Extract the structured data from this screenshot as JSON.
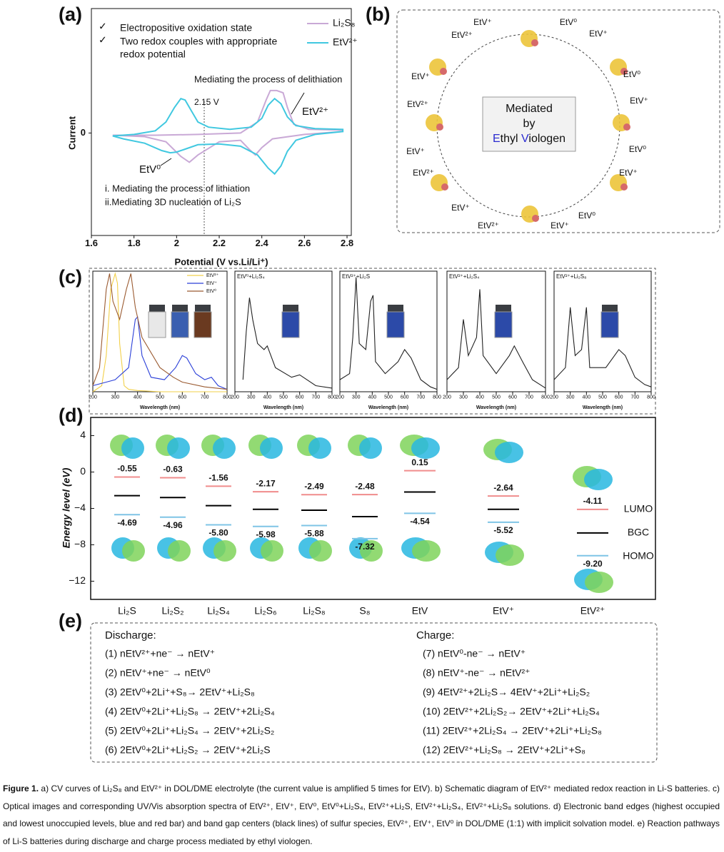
{
  "panel_labels": [
    "(a)",
    "(b)",
    "(c)",
    "(d)",
    "(e)"
  ],
  "chart_data": [
    {
      "type": "line",
      "x_label": "Potential (V vs.Li/Li⁺)",
      "y_label": "Current",
      "xlim": [
        1.6,
        2.82
      ],
      "xticks": [
        1.6,
        1.8,
        2.0,
        2.2,
        2.4,
        2.6,
        2.8
      ],
      "ylim": [
        -1.4,
        1.7
      ],
      "yticks": [
        0
      ],
      "annotations": [
        "Electropositive oxidation state",
        "Two redox couples with appropriate",
        "redox potential",
        "Mediating the process of delithiation",
        "2.15 V",
        "EtV²⁺",
        "EtV⁰",
        "i. Mediating the process of lithiation",
        "ii.Mediating 3D nucleation of Li₂S"
      ],
      "series": [
        {
          "name": "Li₂S₈",
          "color": "#c9a9d6",
          "x": [
            1.7,
            1.9,
            2.1,
            2.3,
            2.38,
            2.42,
            2.44,
            2.47,
            2.5,
            2.52,
            2.55,
            2.62,
            2.78,
            2.78,
            2.6,
            2.45,
            2.4,
            2.37,
            2.34,
            2.3,
            2.2,
            2.1,
            2.06,
            2.02,
            1.95,
            1.85,
            1.7
          ],
          "values": [
            -0.03,
            -0.03,
            -0.02,
            0.0,
            0.15,
            0.45,
            0.58,
            0.58,
            0.55,
            0.35,
            0.12,
            0.05,
            0.04,
            0.02,
            -0.02,
            -0.08,
            -0.2,
            -0.3,
            -0.22,
            -0.1,
            -0.12,
            -0.3,
            -0.4,
            -0.32,
            -0.12,
            -0.05,
            -0.03
          ]
        },
        {
          "name": "EtV²⁺",
          "color": "#40c8e0",
          "x": [
            1.7,
            1.8,
            1.9,
            1.95,
            1.99,
            2.02,
            2.04,
            2.07,
            2.1,
            2.15,
            2.25,
            2.35,
            2.4,
            2.43,
            2.46,
            2.49,
            2.52,
            2.56,
            2.65,
            2.78,
            2.78,
            2.65,
            2.56,
            2.52,
            2.49,
            2.46,
            2.43,
            2.38,
            2.3,
            2.2,
            2.1,
            2.04,
            2.0,
            1.97,
            1.93,
            1.85,
            1.75,
            1.7
          ],
          "values": [
            -0.04,
            -0.02,
            0.03,
            0.15,
            0.35,
            0.47,
            0.45,
            0.3,
            0.15,
            0.08,
            0.05,
            0.08,
            0.2,
            0.38,
            0.47,
            0.4,
            0.22,
            0.1,
            0.06,
            0.05,
            0.02,
            -0.02,
            -0.1,
            -0.25,
            -0.45,
            -0.56,
            -0.48,
            -0.3,
            -0.18,
            -0.15,
            -0.16,
            -0.22,
            -0.26,
            -0.27,
            -0.24,
            -0.14,
            -0.08,
            -0.04
          ]
        }
      ]
    },
    {
      "type": "line",
      "x_label": "Wavelength (nm)",
      "xlim": [
        200,
        800
      ],
      "xticks": [
        200,
        300,
        400,
        500,
        600,
        700,
        800
      ],
      "ylim": [
        0,
        1
      ],
      "yticks": [],
      "series": [
        {
          "name": "EtV²⁺",
          "color": "#f2d04a",
          "x": [
            200,
            240,
            260,
            280,
            300,
            310,
            320,
            340,
            360,
            400,
            500,
            600,
            800
          ],
          "values": [
            0,
            0.05,
            0.3,
            0.85,
            0.98,
            0.9,
            0.4,
            0.05,
            0.02,
            0.01,
            0,
            0,
            0
          ]
        },
        {
          "name": "EtV⁺",
          "color": "#2a3fd8",
          "x": [
            200,
            260,
            300,
            360,
            390,
            400,
            420,
            460,
            520,
            570,
            600,
            620,
            660,
            700,
            730,
            760,
            800
          ],
          "values": [
            0.05,
            0.08,
            0.1,
            0.2,
            0.6,
            0.62,
            0.3,
            0.12,
            0.1,
            0.2,
            0.3,
            0.28,
            0.15,
            0.1,
            0.12,
            0.05,
            0.02
          ]
        },
        {
          "name": "EtV⁰",
          "color": "#9a5a30",
          "x": [
            200,
            230,
            260,
            275,
            290,
            320,
            350,
            370,
            390,
            420,
            500,
            560,
            600,
            700,
            800
          ],
          "values": [
            0.05,
            0.2,
            0.85,
            0.98,
            0.75,
            0.6,
            0.85,
            0.98,
            0.7,
            0.45,
            0.2,
            0.12,
            0.08,
            0.04,
            0.02
          ]
        }
      ]
    },
    {
      "type": "line",
      "title": "EtV⁰+Li₂S₄",
      "x_label": "Wavelength (nm)",
      "xlim": [
        200,
        800
      ],
      "xticks": [
        200,
        300,
        400,
        500,
        600,
        700,
        800
      ],
      "ylim": [
        0,
        1
      ],
      "yticks": [],
      "series": [
        {
          "color": "#222222",
          "x": [
            250,
            270,
            290,
            310,
            340,
            380,
            400,
            450,
            550,
            600,
            700,
            800
          ],
          "values": [
            0.1,
            0.5,
            0.78,
            0.6,
            0.4,
            0.35,
            0.38,
            0.2,
            0.12,
            0.14,
            0.05,
            0.03
          ]
        }
      ]
    },
    {
      "type": "line",
      "title": "EtV²⁺+Li₂S",
      "x_label": "Wavelength (nm)",
      "xlim": [
        200,
        800
      ],
      "xticks": [
        200,
        300,
        400,
        500,
        600,
        700,
        800
      ],
      "ylim": [
        0,
        1
      ],
      "yticks": [],
      "series": [
        {
          "color": "#222222",
          "x": [
            200,
            260,
            280,
            300,
            320,
            360,
            390,
            405,
            420,
            480,
            560,
            600,
            640,
            700,
            760,
            800
          ],
          "values": [
            0.1,
            0.15,
            0.45,
            0.95,
            0.4,
            0.35,
            0.75,
            0.8,
            0.25,
            0.15,
            0.25,
            0.35,
            0.28,
            0.1,
            0.04,
            0.02
          ]
        }
      ]
    },
    {
      "type": "line",
      "title": "EtV²⁺+Li₂S₄",
      "x_label": "Wavelength (nm)",
      "xlim": [
        200,
        800
      ],
      "xticks": [
        200,
        300,
        400,
        500,
        600,
        700,
        800
      ],
      "ylim": [
        0,
        1
      ],
      "yticks": [],
      "series": [
        {
          "color": "#222222",
          "x": [
            200,
            270,
            300,
            330,
            380,
            400,
            420,
            500,
            580,
            610,
            660,
            720,
            800
          ],
          "values": [
            0.1,
            0.2,
            0.6,
            0.3,
            0.45,
            0.85,
            0.3,
            0.15,
            0.3,
            0.38,
            0.25,
            0.1,
            0.03
          ]
        }
      ]
    },
    {
      "type": "line",
      "title": "EtV²⁺+Li₂S₈",
      "x_label": "Wavelength (nm)",
      "xlim": [
        200,
        800
      ],
      "xticks": [
        200,
        300,
        400,
        500,
        600,
        700,
        800
      ],
      "ylim": [
        0,
        1
      ],
      "yticks": [],
      "series": [
        {
          "color": "#222222",
          "x": [
            200,
            270,
            300,
            330,
            370,
            400,
            420,
            520,
            600,
            640,
            700,
            760,
            800
          ],
          "values": [
            0.1,
            0.2,
            0.7,
            0.3,
            0.35,
            0.7,
            0.2,
            0.2,
            0.35,
            0.3,
            0.12,
            0.06,
            0.04
          ]
        }
      ]
    },
    {
      "type": "level",
      "y_label": "Energy level (eV)",
      "ylim": [
        -14,
        6
      ],
      "yticks": [
        4,
        0,
        {
          "value": -4,
          "label": "−4"
        },
        {
          "value": -8,
          "label": "−8"
        },
        {
          "value": -12,
          "label": "−12"
        }
      ],
      "categories": [
        "Li₂S",
        "Li₂S₂",
        "Li₂S₄",
        "Li₂S₆",
        "Li₂S₈",
        "S₈",
        "EtV",
        "EtV⁺",
        "EtV²⁺"
      ],
      "series": [
        {
          "name": "LUMO",
          "color": "#f08c8c",
          "values": [
            -0.55,
            -0.63,
            -1.56,
            -2.17,
            -2.49,
            -2.48,
            0.15,
            -2.64,
            -4.11
          ],
          "value_labels": [
            "-0.55",
            "-0.63",
            "-1.56",
            "-2.17",
            "-2.49",
            "-2.48",
            "0.15",
            "-2.64",
            "-4.11"
          ]
        },
        {
          "name": "BGC",
          "color": "#000000",
          "values": [
            -2.6,
            -2.8,
            -3.7,
            -4.1,
            -4.2,
            -4.9,
            -2.2,
            -4.1,
            -6.7
          ]
        },
        {
          "name": "HOMO",
          "color": "#7fc4e6",
          "values": [
            -4.69,
            -4.96,
            -5.8,
            -5.98,
            -5.88,
            -7.32,
            -4.54,
            -5.52,
            -9.2
          ],
          "value_labels": [
            "-4.69",
            "-4.96",
            "-5.80",
            "-5.98",
            "-5.88",
            "-7.32",
            "-4.54",
            "-5.52",
            "-9.20"
          ]
        }
      ]
    }
  ],
  "diagram": {
    "center": [
      "Mediated",
      "by"
    ],
    "center_last": [
      "E",
      "thyl ",
      "V",
      "iologen"
    ],
    "labels": [
      {
        "text": "EtV⁺",
        "color": "#2a2ad0"
      },
      {
        "text": "EtV²⁺",
        "color": "#e3c21a"
      },
      {
        "text": "EtV⁰",
        "color": "#8a4a30"
      },
      {
        "text": "EtV⁺",
        "color": "#2a2ad0"
      },
      {
        "text": "EtV⁺",
        "color": "#2a2ad0"
      },
      {
        "text": "EtV²⁺",
        "color": "#e3c21a"
      },
      {
        "text": "EtV⁰",
        "color": "#8a4a30"
      },
      {
        "text": "EtV⁺",
        "color": "#2a2ad0"
      },
      {
        "text": "EtV⁺",
        "color": "#2a2ad0"
      },
      {
        "text": "EtV²⁺",
        "color": "#e3c21a"
      },
      {
        "text": "EtV⁰",
        "color": "#8a4a30"
      },
      {
        "text": "EtV⁺",
        "color": "#2a2ad0"
      },
      {
        "text": "EtV⁺",
        "color": "#2a2ad0"
      },
      {
        "text": "EtV²⁺",
        "color": "#e3c21a"
      },
      {
        "text": "EtV⁺",
        "color": "#2a2ad0"
      },
      {
        "text": "EtV⁰",
        "color": "#8a4a30"
      }
    ]
  },
  "reactions": {
    "discharge_title": "Discharge:",
    "charge_title": "Charge:",
    "discharge": [
      "(1) nEtV²⁺+ne⁻ → nEtV⁺",
      "(2) nEtV⁺+ne⁻ → nEtV⁰",
      "(3) 2EtV⁰+2Li⁺+S₈→ 2EtV⁺+Li₂S₈",
      "(4) 2EtV⁰+2Li⁺+Li₂S₈ → 2EtV⁺+2Li₂S₄",
      "(5) 2EtV⁰+2Li⁺+Li₂S₄ → 2EtV⁺+2Li₂S₂",
      "(6) 2EtV⁰+2Li⁺+Li₂S₂ → 2EtV⁺+2Li₂S"
    ],
    "charge": [
      "(7) nEtV⁰-ne⁻ → nEtV⁺",
      "(8) nEtV⁺-ne⁻ → nEtV²⁺",
      "(9) 4EtV²⁺+2Li₂S→ 4EtV⁺+2Li⁺+Li₂S₂",
      "(10) 2EtV²⁺+2Li₂S₂→ 2EtV⁺+2Li⁺+Li₂S₄",
      "(11) 2EtV²⁺+2Li₂S₄ → 2EtV⁺+2Li⁺+Li₂S₈",
      "(12) 2EtV²⁺+Li₂S₈ → 2EtV⁺+2Li⁺+S₈"
    ]
  },
  "caption": {
    "label": "Figure 1.",
    "text": " a) CV curves of Li₂S₈ and EtV²⁺ in DOL/DME electrolyte (the current value is amplified 5 times for EtV). b) Schematic diagram of EtV²⁺ mediated redox reaction in Li-S batteries. c) Optical images and corresponding UV/Vis absorption spectra of EtV²⁺, EtV⁺, EtV⁰, EtV⁰+Li₂S₄, EtV²⁺+Li₂S, EtV²⁺+Li₂S₄, EtV²⁺+Li₂S₈ solutions. d) Electronic band edges (highest occupied and lowest unoccupied levels, blue and red bar) and band gap centers (black lines) of sulfur species, EtV²⁺, EtV⁺, EtV⁰ in DOL/DME (1:1) with implicit solvation model. e) Reaction pathways of Li-S batteries during discharge and charge process mediated by ethyl viologen."
  }
}
